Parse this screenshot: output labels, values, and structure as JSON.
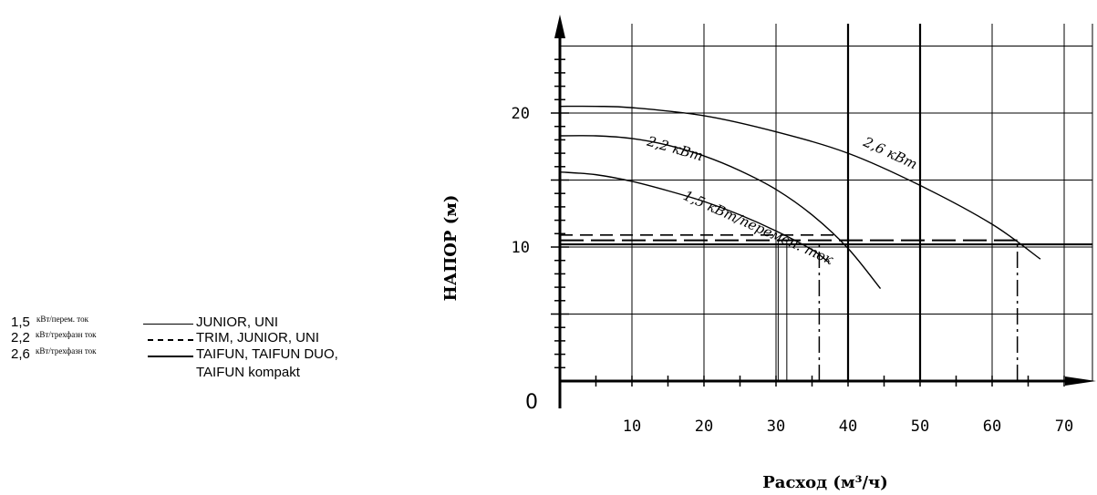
{
  "legend": {
    "items": [
      {
        "power": "1,5",
        "note": "кВт/перем. ток",
        "models": "JUNIOR, UNI",
        "models2": ""
      },
      {
        "power": "2,2",
        "note": "кВт/трехфазн ток",
        "models": "TRIM, JUNIOR, UNI",
        "models2": ""
      },
      {
        "power": "2,6",
        "note": "кВт/трехфазн ток",
        "models": "TAIFUN, TAIFUN DUO,",
        "models2": "TAIFUN kompakt"
      }
    ]
  },
  "chart_data": {
    "type": "line",
    "xlabel": "Расход (м³/ч)",
    "ylabel": "НАПОР (м)",
    "xlim": [
      0,
      75
    ],
    "ylim": [
      0,
      25
    ],
    "x_ticks": [
      10,
      20,
      30,
      40,
      50,
      60,
      70
    ],
    "y_ticks": [
      10,
      20
    ],
    "origin_label": "0",
    "grid": true,
    "series": [
      {
        "name": "2,6 кВт",
        "label": "2,6 кВт",
        "style": "solid",
        "x": [
          0,
          5,
          10,
          20,
          30,
          40,
          50,
          60,
          66.7
        ],
        "y": [
          20.5,
          20.5,
          20.4,
          19.8,
          18.6,
          17.0,
          14.6,
          11.7,
          9.1
        ]
      },
      {
        "name": "2,2 кВт",
        "label": "2,2 кВт",
        "style": "solid",
        "x": [
          0,
          5,
          10,
          15,
          20,
          25,
          30,
          35,
          40,
          44.5
        ],
        "y": [
          18.3,
          18.3,
          18.1,
          17.6,
          16.8,
          15.7,
          14.3,
          12.4,
          9.9,
          6.9
        ]
      },
      {
        "name": "1,5 кВт/перемен. ток",
        "label": "1,5 кВт/перемен. ток",
        "style": "solid",
        "x": [
          0,
          5,
          10,
          15,
          20,
          25,
          30,
          35,
          37.2
        ],
        "y": [
          15.6,
          15.4,
          14.9,
          14.2,
          13.4,
          12.4,
          11.2,
          9.8,
          8.9
        ]
      }
    ],
    "reference_lines": [
      {
        "y": 10.2,
        "style": "solid"
      },
      {
        "y": 10.5,
        "style": "long-dash",
        "x_start": 0,
        "x_end": 63.5
      },
      {
        "y": 10.9,
        "style": "dash",
        "x_start": 0,
        "x_end": 38
      },
      {
        "x": 36,
        "style": "dash-dot",
        "y_start": 0,
        "y_end": 10.5
      },
      {
        "x": 63.5,
        "style": "dash-dot",
        "y_start": 0,
        "y_end": 10.5
      }
    ]
  }
}
